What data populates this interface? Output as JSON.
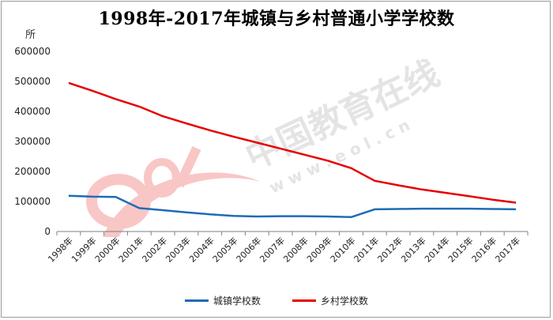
{
  "chart_data": {
    "type": "line",
    "title": "1998年-2017年城镇与乡村普通小学学校数",
    "ylabel": "所",
    "xlabel": "",
    "ylim": [
      0,
      600000
    ],
    "yticks": [
      0,
      100000,
      200000,
      300000,
      400000,
      500000,
      600000
    ],
    "categories": [
      "1998年",
      "1999年",
      "2000年",
      "2001年",
      "2002年",
      "2003年",
      "2004年",
      "2005年",
      "2006年",
      "2007年",
      "2008年",
      "2009年",
      "2010年",
      "2011年",
      "2012年",
      "2013年",
      "2014年",
      "2015年",
      "2016年",
      "2017年"
    ],
    "series": [
      {
        "name": "城镇学校数",
        "color": "#1f6cb5",
        "values": [
          119000,
          116000,
          115000,
          78000,
          71000,
          64000,
          57000,
          52000,
          50000,
          51000,
          51000,
          50000,
          48000,
          74000,
          75000,
          76000,
          76000,
          76000,
          75000,
          74000
        ]
      },
      {
        "name": "乡村学校数",
        "color": "#e60000",
        "values": [
          495000,
          469000,
          441000,
          416000,
          384000,
          360000,
          337000,
          316000,
          296000,
          276000,
          256000,
          236000,
          211000,
          169000,
          154000,
          140000,
          129000,
          118000,
          106000,
          96000
        ]
      }
    ],
    "grid": false,
    "legend_position": "bottom"
  },
  "watermark": {
    "text_cn": "中国教育在线",
    "text_url": "w w w . e o l . c n",
    "logo_text": "eol"
  }
}
